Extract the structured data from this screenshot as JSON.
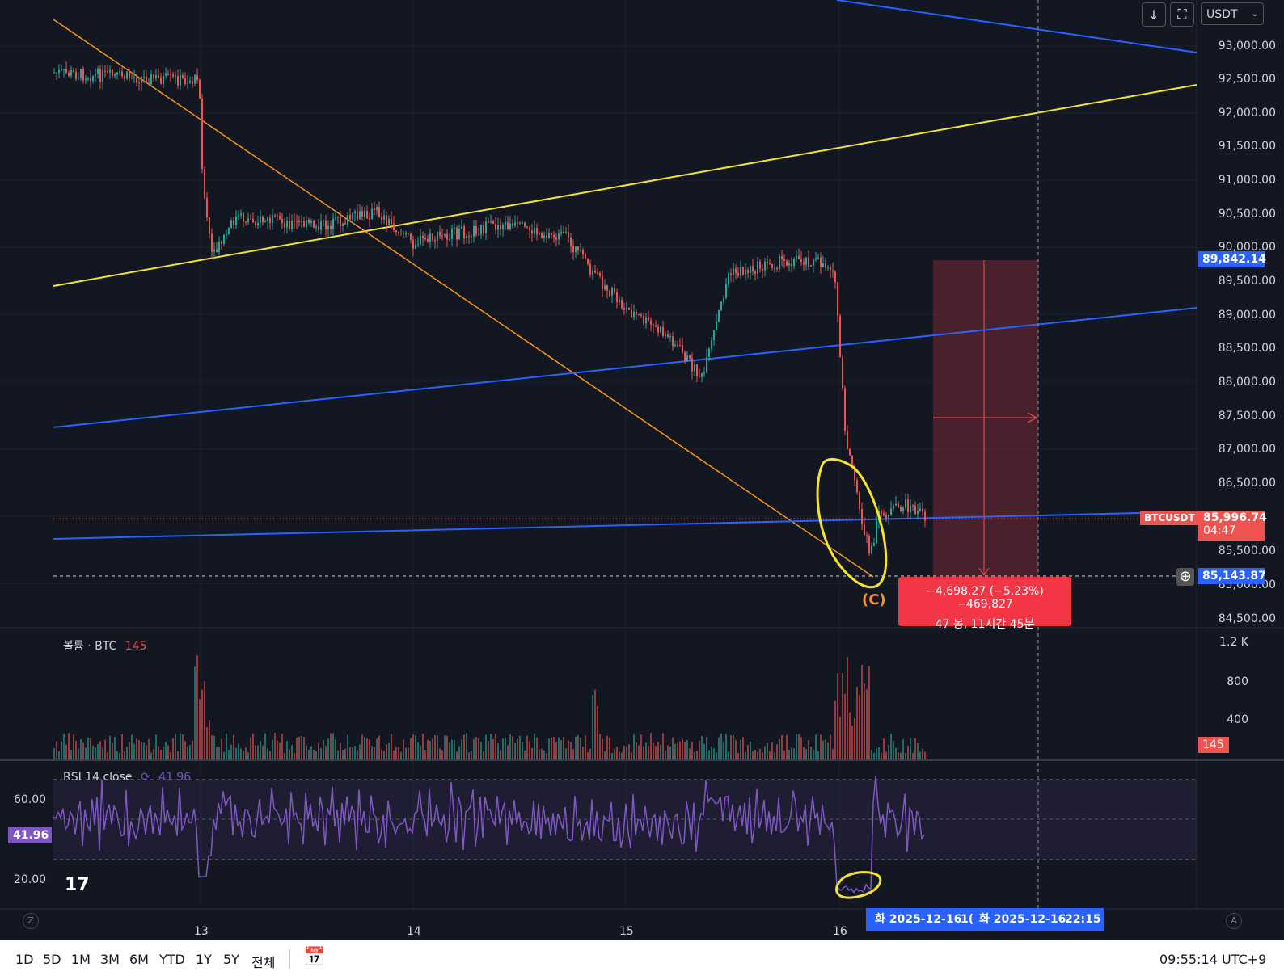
{
  "toolbar": {
    "currency": "USDT",
    "download_icon": "↓",
    "fullscreen_icon": "⛶"
  },
  "price_axis": {
    "labels": [
      "93,000.00",
      "92,500.00",
      "92,000.00",
      "91,500.00",
      "91,000.00",
      "90,500.00",
      "90,000.00",
      "89,500.00",
      "89,000.00",
      "88,500.00",
      "88,000.00",
      "87,500.00",
      "87,000.00",
      "86,500.00",
      "85,500.00",
      "85,000.00",
      "84,500.00"
    ],
    "top_price_tag": "89,842.14",
    "symbol_tag": "BTCUSDT",
    "last_price": "85,996.74",
    "countdown": "04:47",
    "crosshair_price": "85,143.87"
  },
  "measure": {
    "line1": "−4,698.27 (−5.23%) −469,827",
    "line2": "47 봉, 11시간 45분"
  },
  "annotation": {
    "wave_label": "(C)"
  },
  "volume": {
    "title": "볼륨 · BTC",
    "value": "145",
    "axis_labels": [
      "1.2 K",
      "800",
      "400"
    ],
    "tag": "145"
  },
  "rsi": {
    "title": "RSI 14 close",
    "value": "41.96",
    "axis_labels": [
      "60.00",
      "20.00"
    ],
    "tag": "41.96"
  },
  "time_axis": {
    "labels": [
      "13",
      "14",
      "15",
      "16"
    ],
    "crosshair_left": "화 2025-12-16",
    "crosshair_left_trunc": "1(",
    "crosshair_right": "화 2025-12-16",
    "crosshair_right_time": "22:15",
    "left_corner": "Z",
    "right_corner": "A"
  },
  "bottom": {
    "timeframes": [
      "1D",
      "5D",
      "1M",
      "3M",
      "6M",
      "YTD",
      "1Y",
      "5Y",
      "전체"
    ],
    "clock": "09:55:14 UTC+9"
  },
  "colors": {
    "up": "#26a69a",
    "down": "#ef5350",
    "rsi": "#7e57c2",
    "trend_blue": "#2962ff",
    "trend_yellow": "#f5e52a",
    "trend_orange": "#f7931a"
  }
}
